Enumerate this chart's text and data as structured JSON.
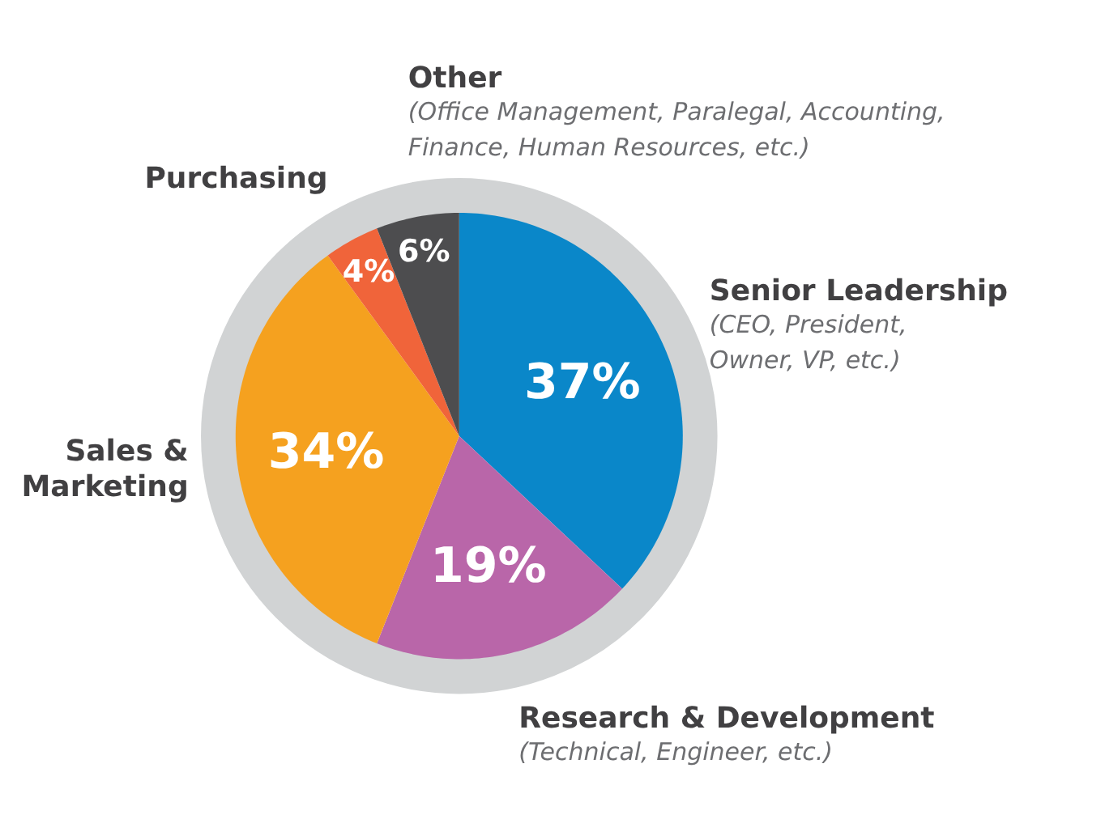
{
  "chart_data": {
    "type": "pie",
    "categories": [
      "Senior Leadership\n(CEO, President,\nOwner, VP, etc.)",
      "Research & Development\n(Technical, Engineer, etc.)",
      "Sales &\nMarketing",
      "Purchasing",
      "Other\n(Office Management, Paralegal, Accounting,\nFinance, Human Resources, etc.)"
    ],
    "values": [
      37,
      19,
      34,
      4,
      6
    ],
    "value_labels": [
      "37%",
      "19%",
      "34%",
      "4%",
      "6%"
    ],
    "colors": [
      "#0a87c9",
      "#b966a9",
      "#f5a11f",
      "#f0643a",
      "#4d4d4f"
    ]
  }
}
